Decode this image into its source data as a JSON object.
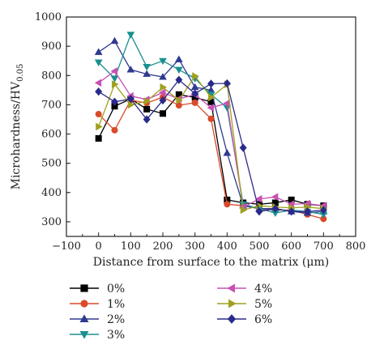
{
  "chart_data": {
    "type": "line",
    "title": "",
    "xlabel": "Distance from surface to the matrix (μm)",
    "ylabel": "Microhardness/HV",
    "ylabel_subscript": "0.05",
    "xlim": [
      -100,
      800
    ],
    "ylim": [
      250,
      1000
    ],
    "xticks": [
      "−100",
      "0",
      "100",
      "200",
      "300",
      "400",
      "500",
      "600",
      "700",
      "800"
    ],
    "yticks": [
      "300",
      "400",
      "500",
      "600",
      "700",
      "800",
      "900",
      "1000"
    ],
    "x": [
      0,
      50,
      100,
      150,
      200,
      250,
      300,
      350,
      400,
      450,
      500,
      550,
      600,
      650,
      700
    ],
    "grid": false,
    "legend_position": "bottom",
    "series": [
      {
        "name": "0%",
        "color": "#000000",
        "marker": "square",
        "values": [
          585,
          695,
          720,
          685,
          670,
          735,
          725,
          710,
          375,
          365,
          360,
          365,
          375,
          360,
          355
        ]
      },
      {
        "name": "1%",
        "color": "#d94a2a",
        "marker": "circle",
        "values": [
          668,
          613,
          716,
          706,
          726,
          698,
          707,
          652,
          360,
          355,
          345,
          340,
          340,
          325,
          310
        ]
      },
      {
        "name": "2%",
        "color": "#2f3a8f",
        "marker": "triangle-up",
        "values": [
          880,
          918,
          820,
          805,
          795,
          855,
          760,
          750,
          535,
          355,
          345,
          345,
          335,
          330,
          335
        ]
      },
      {
        "name": "3%",
        "color": "#1a8f8f",
        "marker": "triangle-down",
        "values": [
          845,
          790,
          940,
          830,
          850,
          820,
          790,
          735,
          690,
          360,
          345,
          330,
          340,
          335,
          325
        ]
      },
      {
        "name": "4%",
        "color": "#c850b4",
        "marker": "triangle-left",
        "values": [
          775,
          815,
          730,
          718,
          742,
          720,
          735,
          690,
          705,
          350,
          378,
          385,
          360,
          362,
          355
        ]
      },
      {
        "name": "5%",
        "color": "#a0a020",
        "marker": "triangle-right",
        "values": [
          625,
          770,
          700,
          712,
          760,
          715,
          798,
          725,
          770,
          340,
          355,
          350,
          348,
          350,
          345
        ]
      },
      {
        "name": "6%",
        "color": "#2a2a8a",
        "marker": "diamond",
        "values": [
          745,
          710,
          720,
          650,
          715,
          785,
          738,
          772,
          773,
          553,
          335,
          345,
          335,
          335,
          340
        ]
      }
    ]
  }
}
